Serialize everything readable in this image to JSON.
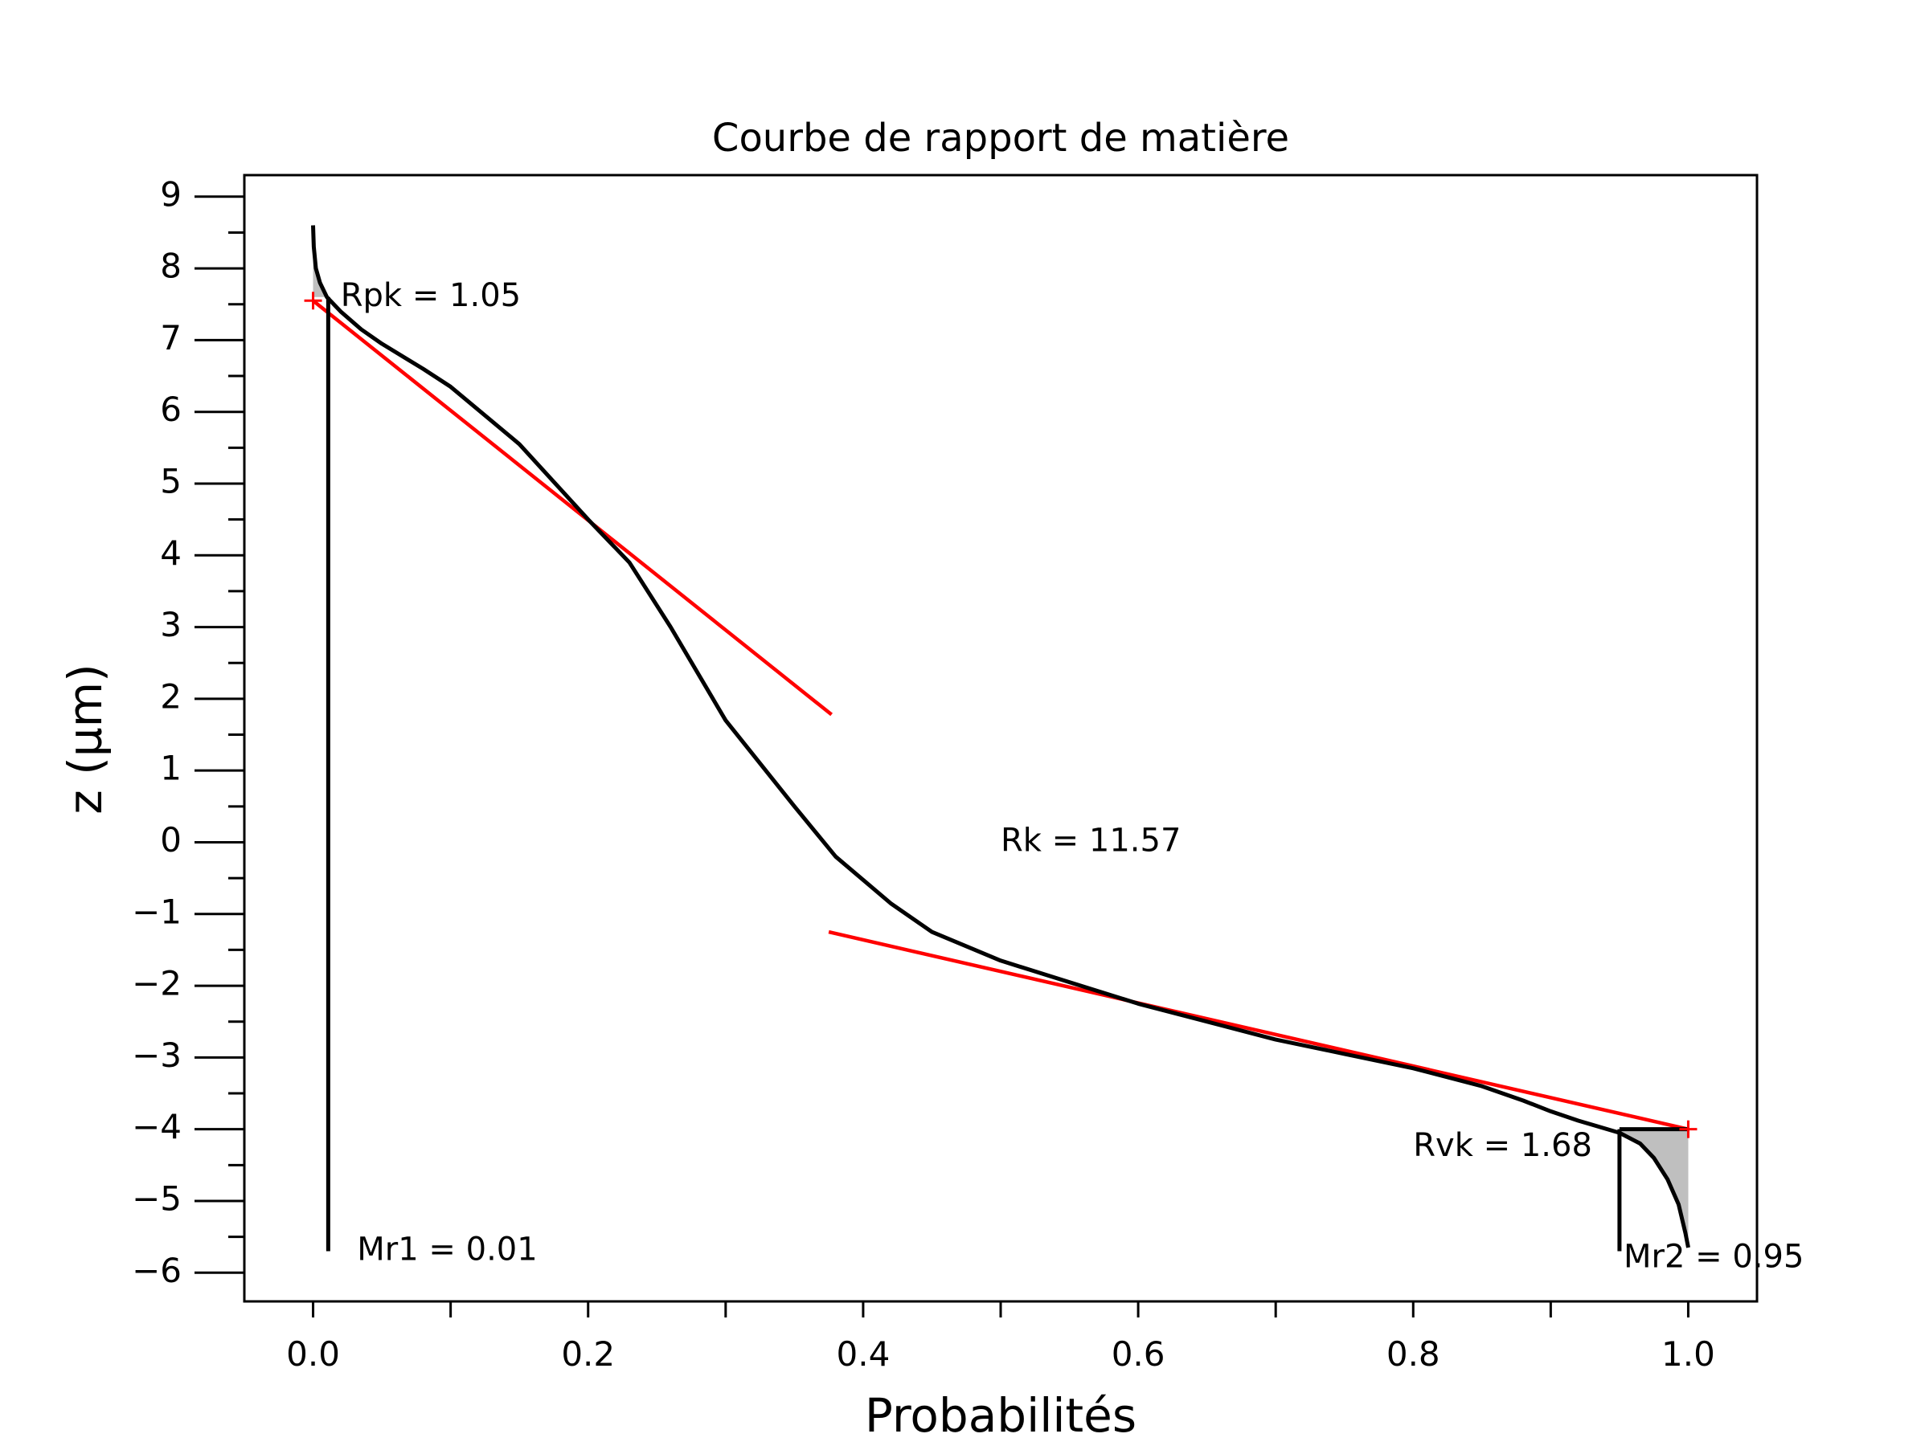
{
  "chart_data": {
    "type": "line",
    "title": "Courbe de rapport de matière",
    "xlabel": "Probabilités",
    "ylabel": "z (µm)",
    "xlim": [
      -0.05,
      1.05
    ],
    "ylim": [
      -6.4,
      9.3
    ],
    "x_ticks": [
      0.0,
      0.2,
      0.4,
      0.6,
      0.8,
      1.0
    ],
    "x_tick_labels": [
      "0.0",
      "0.2",
      "0.4",
      "0.6",
      "0.8",
      "1.0"
    ],
    "x_minor_ticks": [
      0.1,
      0.3,
      0.5,
      0.7,
      0.9
    ],
    "y_ticks": [
      9,
      8,
      7,
      6,
      5,
      4,
      3,
      2,
      1,
      0,
      -1,
      -2,
      -3,
      -4,
      -5,
      -6
    ],
    "y_tick_labels": [
      "9",
      "8",
      "7",
      "6",
      "5",
      "4",
      "3",
      "2",
      "1",
      "0",
      "−1",
      "−2",
      "−3",
      "−4",
      "−5",
      "−6"
    ],
    "y_minor_ticks": [
      8.5,
      7.5,
      6.5,
      5.5,
      4.5,
      3.5,
      2.5,
      1.5,
      0.5,
      -0.5,
      -1.5,
      -2.5,
      -3.5,
      -4.5,
      -5.5
    ],
    "grid": false,
    "series": [
      {
        "role": "bearing-curve",
        "color": "#000000",
        "points": [
          [
            0.0,
            8.6
          ],
          [
            0.0005,
            8.3
          ],
          [
            0.002,
            8.0
          ],
          [
            0.005,
            7.8
          ],
          [
            0.01,
            7.6
          ],
          [
            0.02,
            7.4
          ],
          [
            0.035,
            7.15
          ],
          [
            0.05,
            6.95
          ],
          [
            0.08,
            6.6
          ],
          [
            0.1,
            6.35
          ],
          [
            0.15,
            5.55
          ],
          [
            0.2,
            4.5
          ],
          [
            0.23,
            3.9
          ],
          [
            0.26,
            3.0
          ],
          [
            0.3,
            1.7
          ],
          [
            0.35,
            0.5
          ],
          [
            0.38,
            -0.2
          ],
          [
            0.42,
            -0.85
          ],
          [
            0.45,
            -1.25
          ],
          [
            0.5,
            -1.65
          ],
          [
            0.55,
            -1.95
          ],
          [
            0.6,
            -2.25
          ],
          [
            0.65,
            -2.5
          ],
          [
            0.7,
            -2.75
          ],
          [
            0.75,
            -2.95
          ],
          [
            0.8,
            -3.15
          ],
          [
            0.85,
            -3.4
          ],
          [
            0.88,
            -3.6
          ],
          [
            0.9,
            -3.75
          ],
          [
            0.92,
            -3.88
          ],
          [
            0.95,
            -4.05
          ],
          [
            0.965,
            -4.2
          ],
          [
            0.975,
            -4.4
          ],
          [
            0.985,
            -4.7
          ],
          [
            0.993,
            -5.05
          ],
          [
            0.998,
            -5.45
          ],
          [
            1.0,
            -5.65
          ]
        ]
      },
      {
        "role": "fit-line-upper",
        "color": "#ff0000",
        "points": [
          [
            0.0,
            7.55
          ],
          [
            0.377,
            1.78
          ]
        ]
      },
      {
        "role": "fit-line-lower",
        "color": "#ff0000",
        "points": [
          [
            0.375,
            -1.25
          ],
          [
            1.0,
            -4.0
          ]
        ]
      }
    ],
    "vertical_markers": [
      {
        "x": 0.011,
        "y_top": 7.6,
        "y_bottom": -5.7
      },
      {
        "x": 0.95,
        "y_top": -4.0,
        "y_bottom": -5.7
      }
    ],
    "horizontal_markers": [
      {
        "x_start": 0.95,
        "x_end": 1.0,
        "y": -4.0
      }
    ],
    "shaded_regions": [
      {
        "color": "#bfbfbf",
        "points": [
          [
            0.0,
            8.6
          ],
          [
            0.0005,
            8.3
          ],
          [
            0.002,
            8.0
          ],
          [
            0.005,
            7.8
          ],
          [
            0.01,
            7.6
          ],
          [
            0.0,
            7.6
          ]
        ]
      },
      {
        "color": "#bfbfbf",
        "points": [
          [
            0.95,
            -4.0
          ],
          [
            1.0,
            -4.0
          ],
          [
            1.0,
            -5.65
          ],
          [
            0.998,
            -5.45
          ],
          [
            0.993,
            -5.05
          ],
          [
            0.985,
            -4.7
          ],
          [
            0.975,
            -4.4
          ],
          [
            0.965,
            -4.2
          ],
          [
            0.95,
            -4.05
          ]
        ]
      }
    ],
    "point_markers": [
      {
        "x": 0.0,
        "y": 7.55,
        "color": "#ff0000",
        "symbol": "+"
      },
      {
        "x": 1.0,
        "y": -4.0,
        "color": "#ff0000",
        "symbol": "+"
      }
    ],
    "annotations": [
      {
        "name": "rpk",
        "text": "Rpk = 1.05",
        "x": 0.02,
        "y": 7.6
      },
      {
        "name": "rk",
        "text": "Rk = 11.57",
        "x": 0.5,
        "y": 0.0
      },
      {
        "name": "rvk",
        "text": "Rvk = 1.68",
        "x": 0.8,
        "y": -4.25
      },
      {
        "name": "mr1",
        "text": "Mr1 = 0.01",
        "x": 0.032,
        "y": -5.7
      },
      {
        "name": "mr2",
        "text": "Mr2 = 0.95",
        "x": 0.953,
        "y": -5.8
      }
    ]
  }
}
